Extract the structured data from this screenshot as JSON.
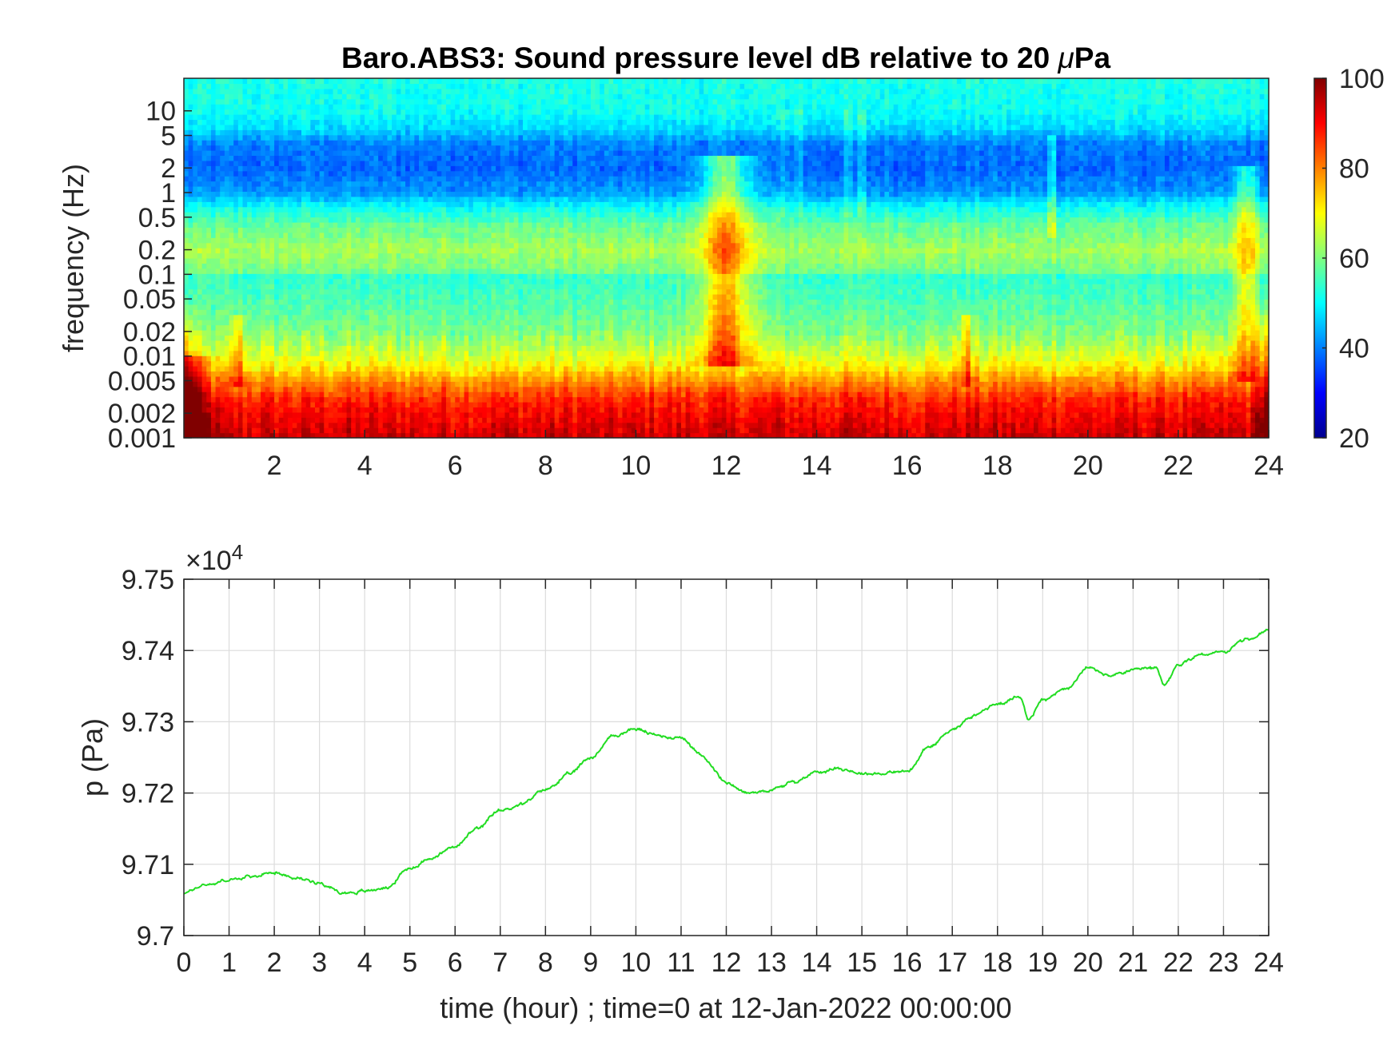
{
  "chart_data": [
    {
      "type": "heatmap",
      "title": "Baro.ABS3: Sound pressure level dB relative to 20 μPa",
      "title_parts": [
        "Baro.ABS3: Sound pressure level dB relative to 20 ",
        "μ",
        "Pa"
      ],
      "ylabel": "frequency (Hz)",
      "xlabel": "",
      "x_range": [
        0,
        24
      ],
      "x_ticks": [
        2,
        4,
        6,
        8,
        10,
        12,
        14,
        16,
        18,
        20,
        22,
        24
      ],
      "y_scale": "log",
      "y_range": [
        0.001,
        25
      ],
      "y_ticks": [
        0.001,
        0.002,
        0.005,
        0.01,
        0.02,
        0.05,
        0.1,
        0.2,
        0.5,
        1,
        2,
        5,
        10
      ],
      "y_tick_labels": [
        "0.001",
        "0.002",
        "0.005",
        "0.01",
        "0.02",
        "0.05",
        "0.1",
        "0.2",
        "0.5",
        "1",
        "2",
        "5",
        "10"
      ],
      "colorbar": {
        "colormap": "jet",
        "range": [
          20,
          100
        ],
        "ticks": [
          20,
          40,
          60,
          80,
          100
        ]
      },
      "spectral_profile_db": [
        {
          "f": 0.001,
          "db": 94
        },
        {
          "f": 0.0015,
          "db": 92
        },
        {
          "f": 0.002,
          "db": 90
        },
        {
          "f": 0.003,
          "db": 87
        },
        {
          "f": 0.005,
          "db": 79
        },
        {
          "f": 0.007,
          "db": 72
        },
        {
          "f": 0.01,
          "db": 67
        },
        {
          "f": 0.02,
          "db": 60
        },
        {
          "f": 0.05,
          "db": 56
        },
        {
          "f": 0.095,
          "db": 54
        },
        {
          "f": 0.1,
          "db": 53
        },
        {
          "f": 0.11,
          "db": 59
        },
        {
          "f": 0.2,
          "db": 63
        },
        {
          "f": 0.4,
          "db": 58
        },
        {
          "f": 0.7,
          "db": 50
        },
        {
          "f": 1,
          "db": 42
        },
        {
          "f": 2,
          "db": 38
        },
        {
          "f": 4,
          "db": 40
        },
        {
          "f": 6,
          "db": 47
        },
        {
          "f": 10,
          "db": 51
        },
        {
          "f": 25,
          "db": 52
        }
      ],
      "events": [
        {
          "t": 12.0,
          "width_h": 0.55,
          "fmin": 0.008,
          "fmax": 3,
          "boost_db": 20
        },
        {
          "t": 23.5,
          "width_h": 0.25,
          "fmin": 0.005,
          "fmax": 2,
          "boost_db": 14
        },
        {
          "t": 19.2,
          "width_h": 0.06,
          "fmin": 0.3,
          "fmax": 5,
          "boost_db": 16
        },
        {
          "t": 17.3,
          "width_h": 0.12,
          "fmin": 0.004,
          "fmax": 0.03,
          "boost_db": 12
        },
        {
          "t": 15.0,
          "width_h": 0.05,
          "fmin": 0.5,
          "fmax": 10,
          "boost_db": 12
        },
        {
          "t": 14.7,
          "width_h": 0.05,
          "fmin": 0.5,
          "fmax": 10,
          "boost_db": 10
        },
        {
          "t": 13.6,
          "width_h": 0.05,
          "fmin": 0.5,
          "fmax": 10,
          "boost_db": 10
        },
        {
          "t": 13.3,
          "width_h": 0.05,
          "fmin": 0.5,
          "fmax": 10,
          "boost_db": 9
        },
        {
          "t": 1.2,
          "width_h": 0.15,
          "fmin": 0.004,
          "fmax": 0.03,
          "boost_db": 10
        },
        {
          "t": 0.2,
          "width_h": 0.4,
          "fmin": 0.001,
          "fmax": 0.01,
          "boost_db": 12
        }
      ]
    },
    {
      "type": "line",
      "title": "",
      "xlabel": "time (hour) ; time=0 at 12-Jan-2022 00:00:00",
      "ylabel": "p (Pa)",
      "y_exponent_label": "×10",
      "y_exponent": "4",
      "xlim": [
        0,
        24
      ],
      "ylim": [
        97000,
        97500
      ],
      "x_ticks": [
        0,
        1,
        2,
        3,
        4,
        5,
        6,
        7,
        8,
        9,
        10,
        11,
        12,
        13,
        14,
        15,
        16,
        17,
        18,
        19,
        20,
        21,
        22,
        23,
        24
      ],
      "y_ticks": [
        97000,
        97100,
        97200,
        97300,
        97400,
        97500
      ],
      "y_tick_labels": [
        "9.7",
        "9.71",
        "9.72",
        "9.73",
        "9.74",
        "9.75"
      ],
      "grid": true,
      "line_color": "#22dd22",
      "x": [
        0,
        0.5,
        1,
        1.5,
        2,
        2.5,
        3,
        3.5,
        4,
        4.5,
        5,
        5.5,
        6,
        6.5,
        7,
        7.5,
        8,
        8.5,
        9,
        9.5,
        10,
        10.5,
        11,
        11.5,
        12,
        12.5,
        13,
        13.5,
        14,
        14.5,
        15,
        15.5,
        16,
        16.5,
        17,
        17.5,
        18,
        18.5,
        18.7,
        19,
        19.5,
        20,
        20.5,
        21,
        21.5,
        21.7,
        22,
        22.5,
        23,
        23.5,
        24
      ],
      "y": [
        97060,
        97072,
        97078,
        97082,
        97090,
        97080,
        97075,
        97060,
        97062,
        97068,
        97095,
        97110,
        97125,
        97150,
        97175,
        97185,
        97205,
        97225,
        97250,
        97280,
        97290,
        97280,
        97278,
        97250,
        97215,
        97200,
        97205,
        97215,
        97230,
        97235,
        97228,
        97228,
        97230,
        97265,
        97290,
        97310,
        97325,
        97335,
        97305,
        97330,
        97345,
        97375,
        97365,
        97372,
        97375,
        97350,
        97380,
        97395,
        97398,
        97415,
        97428
      ]
    }
  ]
}
